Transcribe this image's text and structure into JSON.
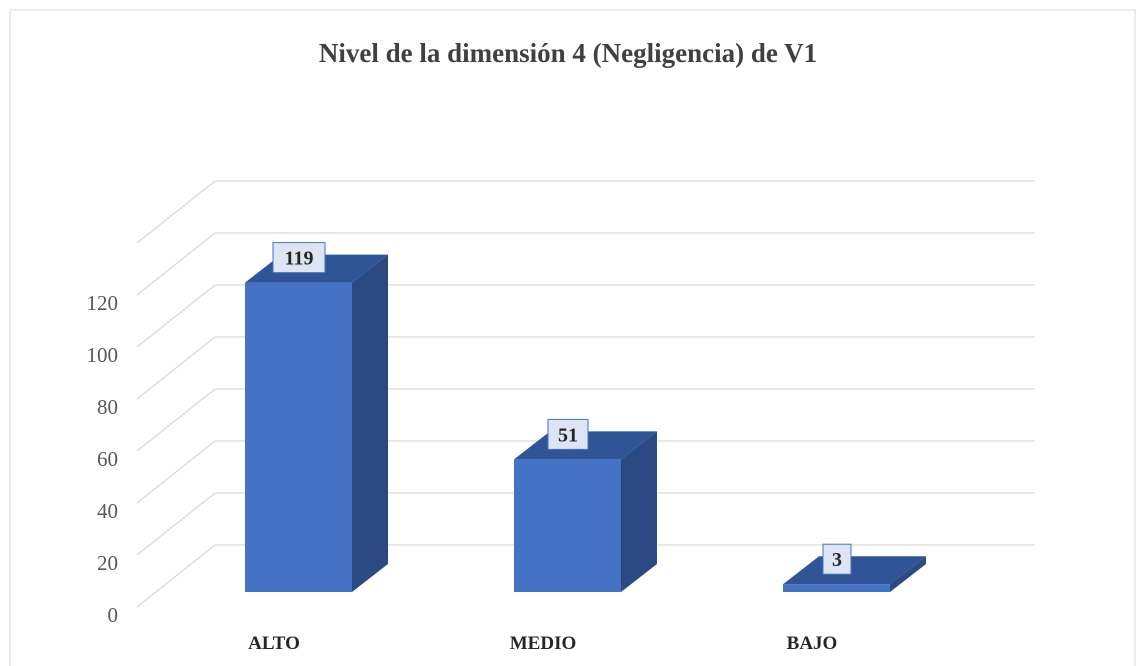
{
  "chart_data": {
    "type": "bar",
    "title": "Nivel de la dimensión 4 (Negligencia) de V1",
    "categories": [
      "ALTO",
      "MEDIO",
      "BAJO"
    ],
    "values": [
      119,
      51,
      3
    ],
    "color": "#4472c4",
    "ylim": [
      0,
      140
    ],
    "yticks": [
      0,
      20,
      40,
      60,
      80,
      100,
      120
    ],
    "grid": true
  }
}
